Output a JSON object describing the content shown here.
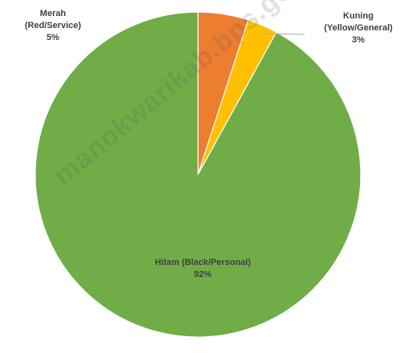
{
  "chart_data": {
    "type": "pie",
    "title": "",
    "slices": [
      {
        "label_line1": "Merah",
        "label_line2": "(Red/Service)",
        "percent_text": "5%",
        "value": 5,
        "color": "#ED7D31"
      },
      {
        "label_line1": "Kuning",
        "label_line2": "(Yellow/General)",
        "percent_text": "3%",
        "value": 3,
        "color": "#FFC000"
      },
      {
        "label_line1": "Hitam (Black/Personal)",
        "label_line2": "",
        "percent_text": "92%",
        "value": 92,
        "color": "#70AD47"
      }
    ],
    "start_angle": "12 o'clock",
    "direction": "clockwise",
    "legend": "none"
  },
  "watermark": {
    "text": "manokwarikab.bps.go.id"
  }
}
